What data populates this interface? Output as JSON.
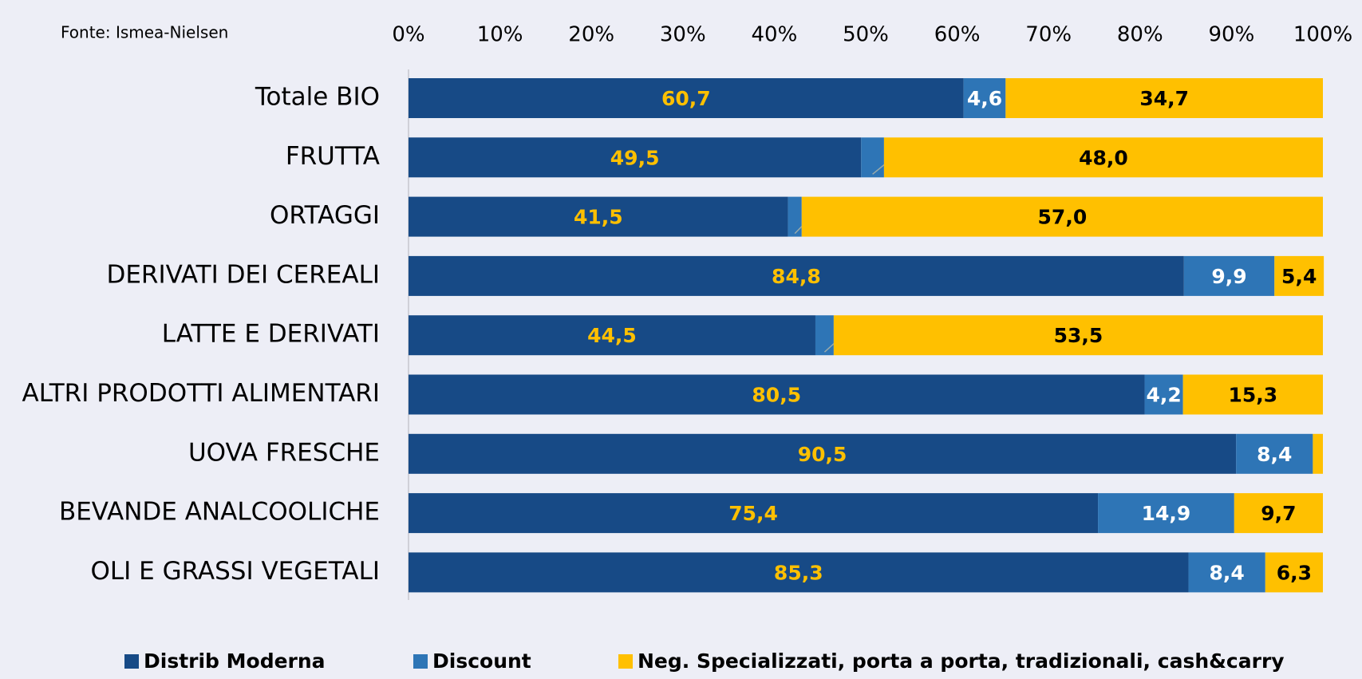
{
  "chart_data": {
    "type": "stacked_barh",
    "source": "Fonte: Ismea-Nielsen",
    "categories": [
      "Totale BIO",
      "FRUTTA",
      "ORTAGGI",
      "DERIVATI DEI CEREALI",
      "LATTE E DERIVATI",
      "ALTRI PRODOTTI ALIMENTARI",
      "UOVA FRESCHE",
      "BEVANDE ANALCOOLICHE",
      "OLI E GRASSI VEGETALI"
    ],
    "series": [
      {
        "name": "Distrib Moderna",
        "color": "#174a86",
        "label_color": "#ffc000",
        "values": [
          60.7,
          49.5,
          41.5,
          84.8,
          44.5,
          80.5,
          90.5,
          75.4,
          85.3
        ],
        "value_labels": [
          "60,7",
          "49,5",
          "41,5",
          "84,8",
          "44,5",
          "80,5",
          "90,5",
          "75,4",
          "85,3"
        ]
      },
      {
        "name": "Discount",
        "color": "#2e75b6",
        "label_color": "#ffffff",
        "values": [
          4.6,
          2.5,
          1.5,
          9.9,
          2.0,
          4.2,
          8.4,
          14.9,
          8.4
        ],
        "value_labels": [
          "4,6",
          "2,5",
          "1,5",
          "9,9",
          "2,0",
          "4,2",
          "8,4",
          "14,9",
          "8,4"
        ]
      },
      {
        "name": "Neg. Specializzati, porta a porta, tradizionali, cash&carry",
        "color": "#ffc000",
        "label_color": "#000000",
        "values": [
          34.7,
          48.0,
          57.0,
          5.4,
          53.5,
          15.3,
          1.1,
          9.7,
          6.3
        ],
        "value_labels": [
          "34,7",
          "48,0",
          "57,0",
          "5,4",
          "53,5",
          "15,3",
          null,
          "9,7",
          "6,3"
        ]
      }
    ],
    "xlim": [
      0,
      100
    ],
    "xticks": [
      {
        "value": 0,
        "label": "0%"
      },
      {
        "value": 10,
        "label": "10%"
      },
      {
        "value": 20,
        "label": "20%"
      },
      {
        "value": 30,
        "label": "30%"
      },
      {
        "value": 40,
        "label": "40%"
      },
      {
        "value": 50,
        "label": "50%"
      },
      {
        "value": 60,
        "label": "60%"
      },
      {
        "value": 70,
        "label": "70%"
      },
      {
        "value": 80,
        "label": "80%"
      },
      {
        "value": 90,
        "label": "90%"
      },
      {
        "value": 100,
        "label": "100%"
      }
    ],
    "legend": "bottom"
  }
}
